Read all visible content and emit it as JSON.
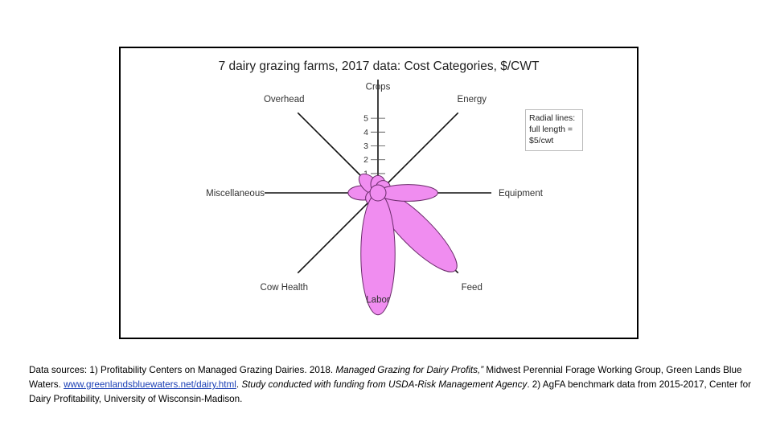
{
  "chart_data": {
    "type": "radial-petal",
    "title": "7 dairy grazing farms, 2017 data: Cost Categories, $/CWT",
    "categories": [
      "Crops",
      "Energy",
      "Equipment",
      "Feed",
      "Labor",
      "Cow Health",
      "Miscellaneous",
      "Overhead"
    ],
    "values": [
      0.7,
      0.3,
      2.4,
      4.4,
      4.9,
      0.3,
      1.2,
      1.0
    ],
    "radial_max": 5,
    "ticks": [
      "1",
      "2",
      "3",
      "4",
      "5"
    ],
    "legend": [
      "Radial lines:",
      "full length =",
      "$5/cwt"
    ],
    "petal_color": "#f08df0",
    "petal_stroke": "#6a2a6a"
  },
  "sources": {
    "part1": "Data sources: 1) Profitability Centers on Managed Grazing Dairies. 2018. ",
    "italic1": "Managed Grazing for Dairy Profits,”",
    "part2": " Midwest Perennial Forage Working Group, Green Lands Blue Waters. ",
    "link": "www.greenlandsbluewaters.net/dairy.html",
    "part3": ". ",
    "italic2": "Study conducted with funding from USDA-Risk Management Agency",
    "part4": ". 2) AgFA benchmark data from 2015-2017, Center for Dairy Profitability, University of Wisconsin-Madison."
  }
}
